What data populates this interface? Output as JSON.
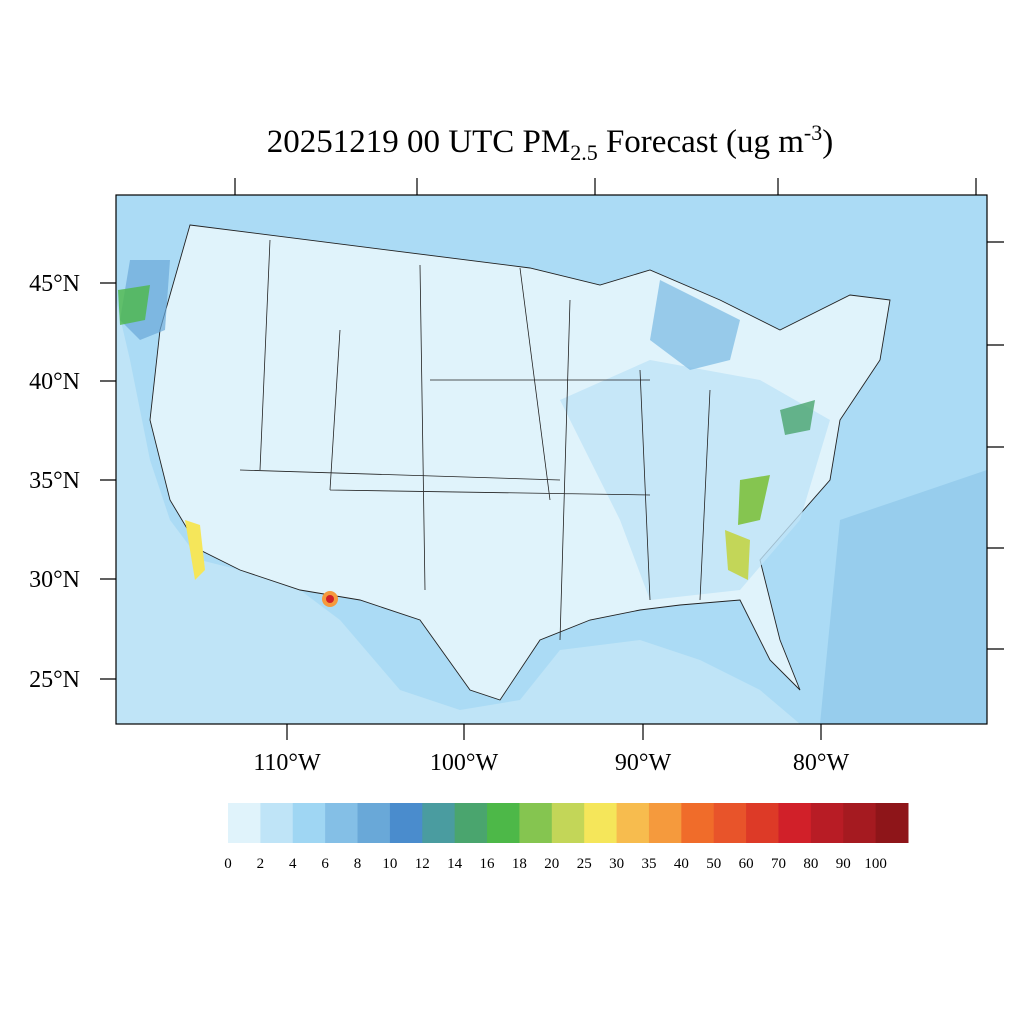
{
  "header": {
    "title": {
      "main": "20251219 00 UTC PM",
      "sub": "2.5",
      "mid": " Forecast (ug m",
      "sup": "-3",
      "end": ")"
    }
  },
  "map": {
    "lat_labels": [
      "45°N",
      "40°N",
      "35°N",
      "30°N",
      "25°N"
    ],
    "lon_labels": [
      "110°W",
      "100°W",
      "90°W",
      "80°W"
    ]
  },
  "colorbar": {
    "levels": [
      0,
      2,
      4,
      6,
      8,
      10,
      12,
      14,
      16,
      18,
      20,
      25,
      30,
      35,
      40,
      50,
      60,
      70,
      80,
      90,
      100
    ],
    "colors": [
      "#e0f3fb",
      "#bfe4f7",
      "#9fd6f3",
      "#84bfe6",
      "#69a8d8",
      "#4a8ccd",
      "#4a9ca0",
      "#4aa56e",
      "#4db848",
      "#85c550",
      "#c3d658",
      "#f5e65a",
      "#f7bc4e",
      "#f59a3d",
      "#f06c2a",
      "#e8542a",
      "#dd3a27",
      "#d12029",
      "#b81c25",
      "#a51a20",
      "#8e1519"
    ]
  }
}
